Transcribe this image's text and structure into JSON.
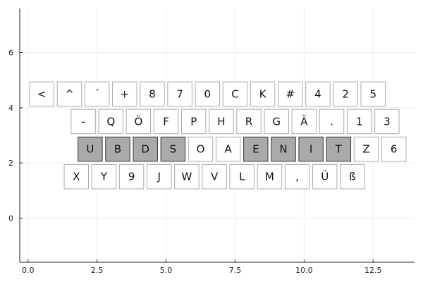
{
  "chart_data": {
    "type": "scatter",
    "title": "",
    "xlabel": "",
    "ylabel": "",
    "xlim": [
      -0.3,
      14.0
    ],
    "ylim": [
      -1.6,
      7.6
    ],
    "grid": true,
    "legend": "none",
    "x_ticks": [
      0.0,
      2.5,
      5.0,
      7.5,
      10.0,
      12.5
    ],
    "x_tick_labels": [
      "0.0",
      "2.5",
      "5.0",
      "7.5",
      "10.0",
      "12.5"
    ],
    "y_ticks": [
      0,
      2,
      4,
      6
    ],
    "y_tick_labels": [
      "0",
      "2",
      "4",
      "6"
    ],
    "colors": {
      "key_fill": "#ffffff",
      "key_fill_highlight": "#aaaaaa",
      "key_stroke": "#aaaaaa",
      "key_stroke_highlight": "#333333",
      "grid": "#efefef",
      "axis": "#222222"
    },
    "rows": [
      {
        "y": 4.5,
        "keys": [
          {
            "label": "<",
            "x": 0.5,
            "highlight": false
          },
          {
            "label": "^",
            "x": 1.5,
            "highlight": false
          },
          {
            "label": "´",
            "x": 2.5,
            "highlight": false
          },
          {
            "label": "+",
            "x": 3.5,
            "highlight": false
          },
          {
            "label": "8",
            "x": 4.5,
            "highlight": false
          },
          {
            "label": "7",
            "x": 5.5,
            "highlight": false
          },
          {
            "label": "0",
            "x": 6.5,
            "highlight": false
          },
          {
            "label": "C",
            "x": 7.5,
            "highlight": false
          },
          {
            "label": "K",
            "x": 8.5,
            "highlight": false
          },
          {
            "label": "#",
            "x": 9.5,
            "highlight": false
          },
          {
            "label": "4",
            "x": 10.5,
            "highlight": false
          },
          {
            "label": "2",
            "x": 11.5,
            "highlight": false
          },
          {
            "label": "5",
            "x": 12.5,
            "highlight": false
          }
        ]
      },
      {
        "y": 3.5,
        "keys": [
          {
            "label": "-",
            "x": 2.0,
            "highlight": false
          },
          {
            "label": "Q",
            "x": 3.0,
            "highlight": false
          },
          {
            "label": "Ö",
            "x": 4.0,
            "highlight": false
          },
          {
            "label": "F",
            "x": 5.0,
            "highlight": false
          },
          {
            "label": "P",
            "x": 6.0,
            "highlight": false
          },
          {
            "label": "H",
            "x": 7.0,
            "highlight": false
          },
          {
            "label": "R",
            "x": 8.0,
            "highlight": false
          },
          {
            "label": "G",
            "x": 9.0,
            "highlight": false
          },
          {
            "label": "Ä",
            "x": 10.0,
            "highlight": false
          },
          {
            "label": ".",
            "x": 11.0,
            "highlight": false
          },
          {
            "label": "1",
            "x": 12.0,
            "highlight": false
          },
          {
            "label": "3",
            "x": 13.0,
            "highlight": false
          }
        ]
      },
      {
        "y": 2.5,
        "keys": [
          {
            "label": "U",
            "x": 2.25,
            "highlight": true
          },
          {
            "label": "B",
            "x": 3.25,
            "highlight": true
          },
          {
            "label": "D",
            "x": 4.25,
            "highlight": true
          },
          {
            "label": "S",
            "x": 5.25,
            "highlight": true
          },
          {
            "label": "O",
            "x": 6.25,
            "highlight": false
          },
          {
            "label": "A",
            "x": 7.25,
            "highlight": false
          },
          {
            "label": "E",
            "x": 8.25,
            "highlight": true
          },
          {
            "label": "N",
            "x": 9.25,
            "highlight": true
          },
          {
            "label": "I",
            "x": 10.25,
            "highlight": true
          },
          {
            "label": "T",
            "x": 11.25,
            "highlight": true
          },
          {
            "label": "Z",
            "x": 12.25,
            "highlight": false
          },
          {
            "label": "6",
            "x": 13.25,
            "highlight": false
          }
        ]
      },
      {
        "y": 1.5,
        "keys": [
          {
            "label": "X",
            "x": 1.75,
            "highlight": false
          },
          {
            "label": "Y",
            "x": 2.75,
            "highlight": false
          },
          {
            "label": "9",
            "x": 3.75,
            "highlight": false
          },
          {
            "label": "J",
            "x": 4.75,
            "highlight": false
          },
          {
            "label": "W",
            "x": 5.75,
            "highlight": false
          },
          {
            "label": "V",
            "x": 6.75,
            "highlight": false
          },
          {
            "label": "L",
            "x": 7.75,
            "highlight": false
          },
          {
            "label": "M",
            "x": 8.75,
            "highlight": false
          },
          {
            "label": ",",
            "x": 9.75,
            "highlight": false
          },
          {
            "label": "Ü",
            "x": 10.75,
            "highlight": false
          },
          {
            "label": "ß",
            "x": 11.75,
            "highlight": false
          }
        ]
      }
    ]
  }
}
